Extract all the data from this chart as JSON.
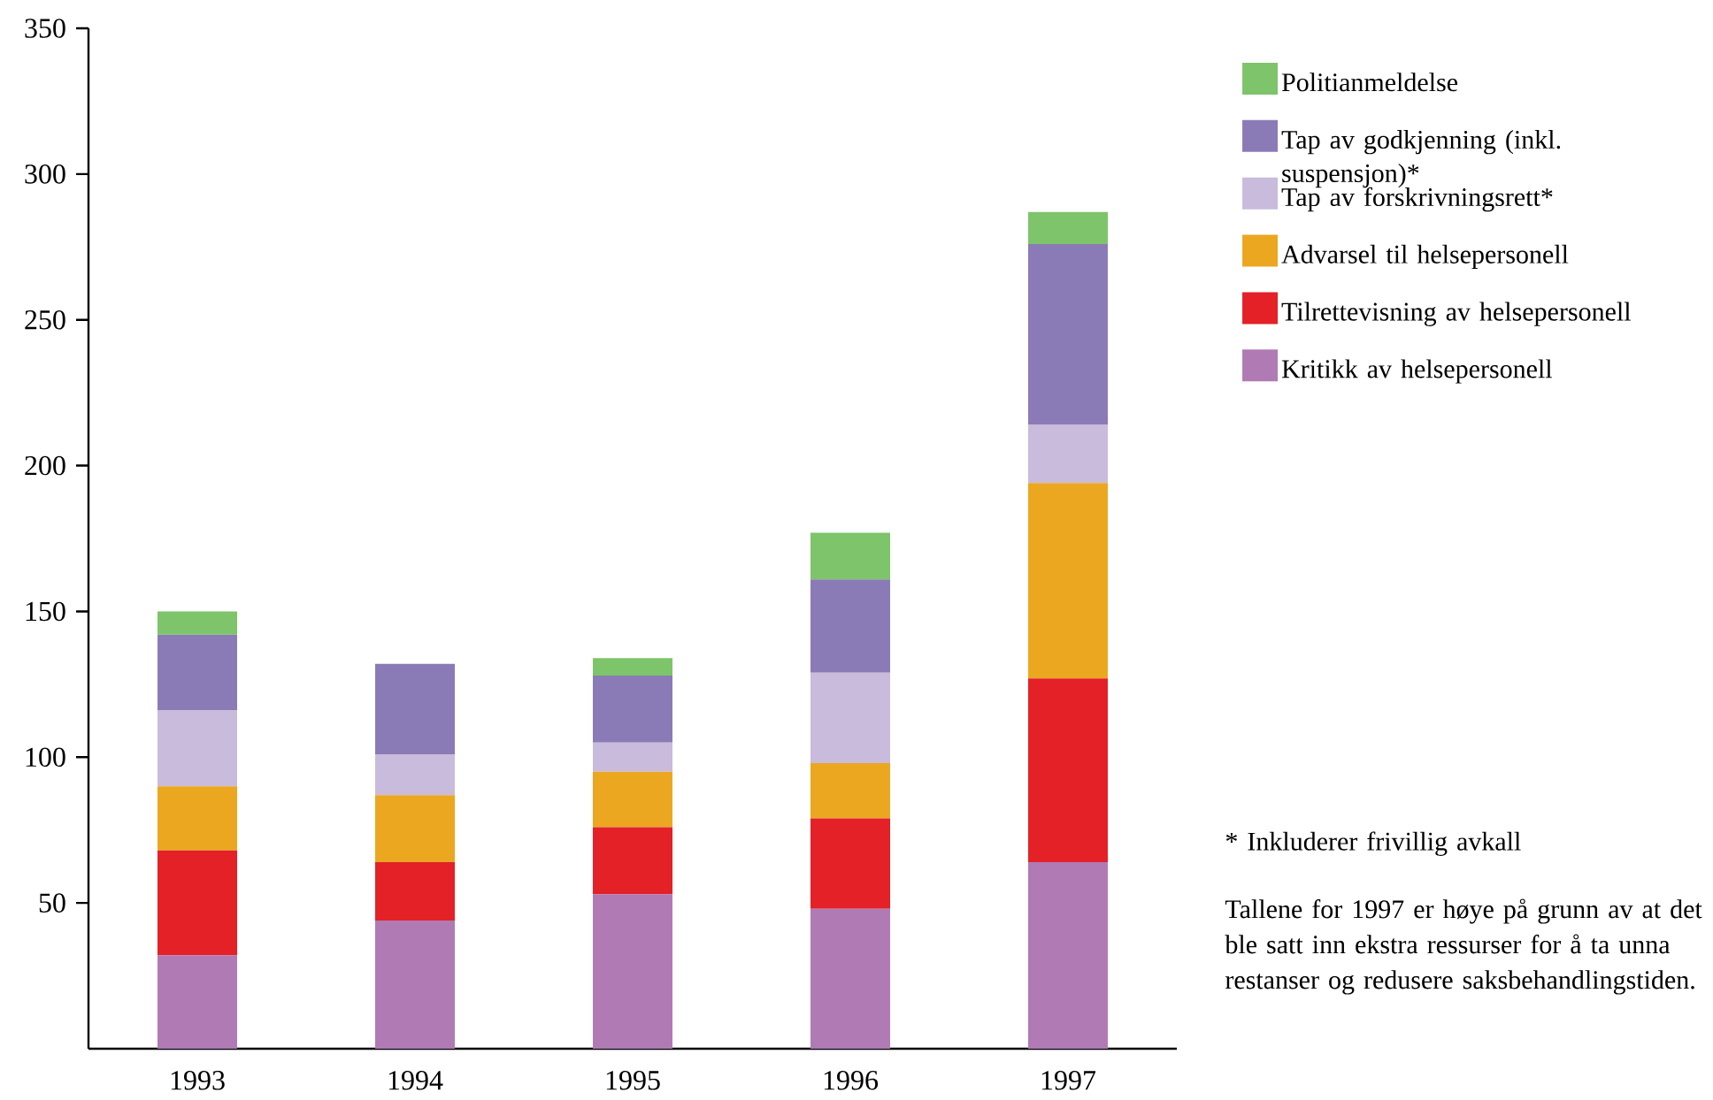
{
  "chart_data": {
    "type": "bar",
    "stacked": true,
    "categories": [
      "1993",
      "1994",
      "1995",
      "1996",
      "1997"
    ],
    "series": [
      {
        "name": "Kritikk av helsepersonell",
        "color": "#b07ab4",
        "values": [
          32,
          44,
          53,
          48,
          64
        ]
      },
      {
        "name": "Tilrettevisning av helsepersonell",
        "color": "#e32127",
        "values": [
          36,
          20,
          23,
          31,
          63
        ]
      },
      {
        "name": "Advarsel til helsepersonell",
        "color": "#eba720",
        "values": [
          22,
          23,
          19,
          19,
          67
        ]
      },
      {
        "name": "Tap av forskrivningsrett*",
        "color": "#c9bbdb",
        "values": [
          26,
          14,
          10,
          31,
          20
        ]
      },
      {
        "name": "Tap av godkjenning (inkl. suspensjon)*",
        "color": "#8a7bb6",
        "values": [
          26,
          31,
          23,
          32,
          62
        ]
      },
      {
        "name": "Politianmeldelse",
        "color": "#7dc46a",
        "values": [
          8,
          0,
          6,
          16,
          11
        ]
      }
    ],
    "ylim": [
      0,
      350
    ],
    "yticks": [
      50,
      100,
      150,
      200,
      250,
      300,
      350
    ],
    "grid": false,
    "legend": "right",
    "annotations": [
      "* Inkluderer frivillig avkall",
      "Tallene for 1997 er høye på grunn av at det ble satt inn ekstra ressurser for å ta unna restanser og redusere saksbehandlingstiden."
    ]
  }
}
